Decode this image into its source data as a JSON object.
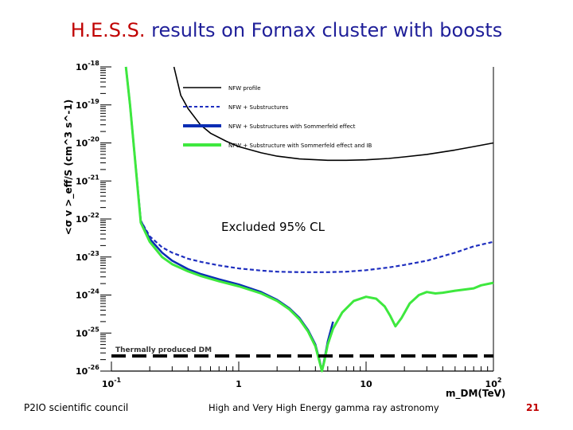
{
  "slide": {
    "title_part1": "H.E.S.S.",
    "title_part2": " results on Fornax cluster with boosts",
    "footer_left": "P2IO scientific council",
    "footer_center": "High and Very High Energy gamma ray astronomy",
    "page_number": "21"
  },
  "chart_data": {
    "type": "line",
    "x_scale": "log",
    "y_scale": "log",
    "xlim": [
      0.1,
      100
    ],
    "ylim": [
      1e-26,
      1e-18
    ],
    "xlabel": "m_DM(TeV)",
    "ylabel": "<σ v >_eff/S (cm^3 s^-1)",
    "x_ticks": [
      {
        "value": 0.1,
        "label_base": "10",
        "label_exp": "-1"
      },
      {
        "value": 1,
        "label_base": "1",
        "label_exp": ""
      },
      {
        "value": 10,
        "label_base": "10",
        "label_exp": ""
      },
      {
        "value": 100,
        "label_base": "10",
        "label_exp": "2"
      }
    ],
    "y_ticks": [
      {
        "value": 1e-18,
        "label_base": "10",
        "label_exp": "-18"
      },
      {
        "value": 1e-19,
        "label_base": "10",
        "label_exp": "-19"
      },
      {
        "value": 1e-20,
        "label_base": "10",
        "label_exp": "-20"
      },
      {
        "value": 1e-21,
        "label_base": "10",
        "label_exp": "-21"
      },
      {
        "value": 1e-22,
        "label_base": "10",
        "label_exp": "-22"
      },
      {
        "value": 1e-23,
        "label_base": "10",
        "label_exp": "-23"
      },
      {
        "value": 1e-24,
        "label_base": "10",
        "label_exp": "-24"
      },
      {
        "value": 1e-25,
        "label_base": "10",
        "label_exp": "-25"
      },
      {
        "value": 1e-26,
        "label_base": "10",
        "label_exp": "-26"
      }
    ],
    "legend_position": "top-right",
    "annotation": "Excluded 95% CL",
    "series": [
      {
        "name": "NFW profile",
        "color": "#000000",
        "style": "solid",
        "x": [
          0.31,
          0.35,
          0.4,
          0.5,
          0.6,
          0.8,
          1.0,
          1.5,
          2,
          3,
          5,
          7,
          10,
          15,
          20,
          30,
          50,
          70,
          100
        ],
        "y": [
          1e-18,
          1.8e-19,
          8e-20,
          3e-20,
          1.8e-20,
          1.1e-20,
          8e-21,
          5.5e-21,
          4.5e-21,
          3.8e-21,
          3.5e-21,
          3.5e-21,
          3.6e-21,
          3.9e-21,
          4.3e-21,
          5e-21,
          6.5e-21,
          8e-21,
          1e-20
        ]
      },
      {
        "name": "NFW + Substructures",
        "color": "#1f2fbf",
        "style": "dashed",
        "x": [
          0.13,
          0.14,
          0.15,
          0.17,
          0.2,
          0.25,
          0.3,
          0.4,
          0.5,
          0.7,
          1,
          1.5,
          2,
          3,
          5,
          7,
          10,
          15,
          20,
          30,
          50,
          70,
          100
        ],
        "y": [
          1e-18,
          1e-19,
          8e-21,
          9e-23,
          3.5e-23,
          1.8e-23,
          1.3e-23,
          9e-24,
          7.5e-24,
          6e-24,
          5e-24,
          4.4e-24,
          4.1e-24,
          4e-24,
          4e-24,
          4.1e-24,
          4.5e-24,
          5.3e-24,
          6.2e-24,
          8e-24,
          1.3e-23,
          1.9e-23,
          2.5e-23
        ]
      },
      {
        "name": "NFW + Substructures with Sommerfeld effect",
        "color": "#0a2db4",
        "style": "solid",
        "x": [
          0.13,
          0.14,
          0.15,
          0.17,
          0.2,
          0.25,
          0.3,
          0.4,
          0.5,
          0.7,
          1,
          1.5,
          2,
          2.5,
          3,
          3.5,
          4,
          4.3,
          4.5,
          4.7,
          5.0,
          5.5
        ],
        "y": [
          1e-18,
          1e-19,
          8e-21,
          9e-23,
          3e-23,
          1.3e-23,
          8e-24,
          4.8e-24,
          3.6e-24,
          2.6e-24,
          1.9e-24,
          1.2e-24,
          7.5e-25,
          4.5e-25,
          2.5e-25,
          1.2e-25,
          5e-26,
          2e-26,
          1e-26,
          2e-26,
          6e-26,
          2e-25
        ]
      },
      {
        "name": "NFW + Substructure with Sommerfeld effect and IB",
        "color": "#3ee83e",
        "style": "solid",
        "x": [
          0.13,
          0.14,
          0.15,
          0.17,
          0.2,
          0.25,
          0.3,
          0.4,
          0.5,
          0.7,
          1,
          1.5,
          2,
          2.5,
          3,
          3.5,
          4,
          4.3,
          4.5,
          4.7,
          5.0,
          5.5,
          6.5,
          8,
          10,
          12,
          14,
          15.5,
          17,
          19,
          22,
          26,
          30,
          35,
          40,
          50,
          60,
          70,
          80,
          100
        ],
        "y": [
          1e-18,
          1e-19,
          8e-21,
          8e-23,
          2.5e-23,
          1e-23,
          6.5e-24,
          4.2e-24,
          3.2e-24,
          2.3e-24,
          1.7e-24,
          1.1e-24,
          7e-25,
          4.2e-25,
          2.3e-25,
          1.1e-25,
          4.5e-26,
          1.8e-26,
          1e-26,
          1.8e-26,
          5e-26,
          1.3e-25,
          3.5e-25,
          7e-25,
          9e-25,
          8e-25,
          5e-25,
          2.8e-25,
          1.5e-25,
          2.5e-25,
          6e-25,
          1e-24,
          1.2e-24,
          1.1e-24,
          1.15e-24,
          1.3e-24,
          1.4e-24,
          1.5e-24,
          1.8e-24,
          2.1e-24
        ]
      },
      {
        "name": "Thermally produced DM",
        "color": "#000000",
        "style": "thick-dashed",
        "x": [
          0.1,
          100
        ],
        "y": [
          2.5e-26,
          2.5e-26
        ]
      }
    ]
  }
}
